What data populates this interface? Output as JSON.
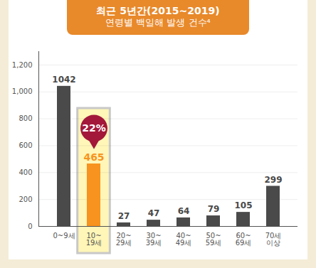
{
  "chart_data": {
    "type": "bar",
    "title": "최근 5년간(2015~2019)",
    "subtitle": "연령별 백일해 발생 건수⁴",
    "categories": [
      "0~9세",
      "10~19세",
      "20~29세",
      "30~39세",
      "40~49세",
      "50~59세",
      "60~69세",
      "70세 이상"
    ],
    "values": [
      1042,
      465,
      27,
      47,
      64,
      79,
      105,
      299
    ],
    "colors": [
      "#4a4a4a",
      "#f7931e",
      "#4a4a4a",
      "#4a4a4a",
      "#4a4a4a",
      "#4a4a4a",
      "#4a4a4a",
      "#4a4a4a"
    ],
    "ylim": [
      0,
      1300
    ],
    "yticks": [
      0,
      200,
      400,
      600,
      800,
      1000,
      1200
    ],
    "grid": true,
    "data_labels": true,
    "annotations": [
      {
        "category": "10~19세",
        "text": "22%"
      }
    ]
  }
}
